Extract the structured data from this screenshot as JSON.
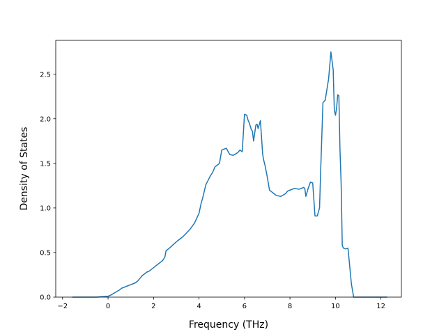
{
  "chart_data": {
    "type": "line",
    "title": "",
    "xlabel": "Frequency (THz)",
    "ylabel": "Density of States",
    "xlim": [
      -2.3,
      12.9
    ],
    "ylim": [
      0.0,
      2.88
    ],
    "grid": false,
    "legend": "none",
    "x_ticks": [
      -2,
      0,
      2,
      4,
      6,
      8,
      10,
      12
    ],
    "x_tick_labels": [
      "−2",
      "0",
      "2",
      "4",
      "6",
      "8",
      "10",
      "12"
    ],
    "y_ticks": [
      0.0,
      0.5,
      1.0,
      1.5,
      2.0,
      2.5
    ],
    "y_tick_labels": [
      "0.0",
      "0.5",
      "1.0",
      "1.5",
      "2.0",
      "2.5"
    ],
    "series": [
      {
        "color": "#1f77b4",
        "x": [
          -1.55,
          -1.0,
          -0.5,
          0.0,
          0.1,
          0.3,
          0.5,
          0.6,
          0.8,
          1.0,
          1.2,
          1.3,
          1.5,
          1.7,
          1.8,
          2.0,
          2.2,
          2.4,
          2.5,
          2.55,
          2.7,
          3.0,
          3.3,
          3.6,
          3.8,
          4.0,
          4.1,
          4.15,
          4.3,
          4.4,
          4.5,
          4.6,
          4.7,
          4.8,
          4.9,
          5.0,
          5.1,
          5.2,
          5.35,
          5.5,
          5.7,
          5.8,
          5.9,
          6.0,
          6.1,
          6.15,
          6.2,
          6.3,
          6.35,
          6.4,
          6.5,
          6.55,
          6.6,
          6.7,
          6.8,
          6.85,
          6.9,
          7.0,
          7.1,
          7.2,
          7.3,
          7.4,
          7.6,
          7.8,
          7.9,
          8.0,
          8.2,
          8.4,
          8.6,
          8.65,
          8.7,
          8.8,
          8.9,
          9.0,
          9.1,
          9.2,
          9.3,
          9.35,
          9.45,
          9.55,
          9.7,
          9.8,
          9.9,
          9.95,
          10.0,
          10.05,
          10.1,
          10.15,
          10.2,
          10.25,
          10.3,
          10.35,
          10.45,
          10.55,
          10.6,
          10.7,
          10.8,
          10.9,
          10.95,
          11.0,
          11.05,
          11.1,
          11.2,
          11.5,
          12.0,
          12.25
        ],
        "y": [
          0.0,
          0.0,
          0.0,
          0.01,
          0.02,
          0.05,
          0.08,
          0.1,
          0.12,
          0.14,
          0.16,
          0.18,
          0.24,
          0.28,
          0.29,
          0.33,
          0.37,
          0.41,
          0.45,
          0.52,
          0.55,
          0.62,
          0.68,
          0.76,
          0.83,
          0.94,
          1.06,
          1.1,
          1.26,
          1.31,
          1.36,
          1.4,
          1.46,
          1.48,
          1.5,
          1.65,
          1.66,
          1.67,
          1.6,
          1.59,
          1.62,
          1.65,
          1.63,
          2.05,
          2.04,
          1.99,
          1.96,
          1.88,
          1.86,
          1.75,
          1.93,
          1.94,
          1.89,
          1.98,
          1.6,
          1.53,
          1.48,
          1.35,
          1.2,
          1.18,
          1.16,
          1.14,
          1.13,
          1.16,
          1.19,
          1.2,
          1.22,
          1.21,
          1.23,
          1.22,
          1.13,
          1.22,
          1.29,
          1.28,
          0.91,
          0.91,
          1.0,
          1.42,
          2.18,
          2.21,
          2.45,
          2.75,
          2.55,
          2.1,
          2.04,
          2.12,
          2.27,
          2.26,
          1.65,
          1.27,
          0.58,
          0.55,
          0.54,
          0.55,
          0.42,
          0.15,
          0.0,
          0.0,
          0.0,
          0.0,
          0.0,
          0.0,
          0.0,
          0.0,
          0.0,
          0.0
        ]
      }
    ]
  }
}
